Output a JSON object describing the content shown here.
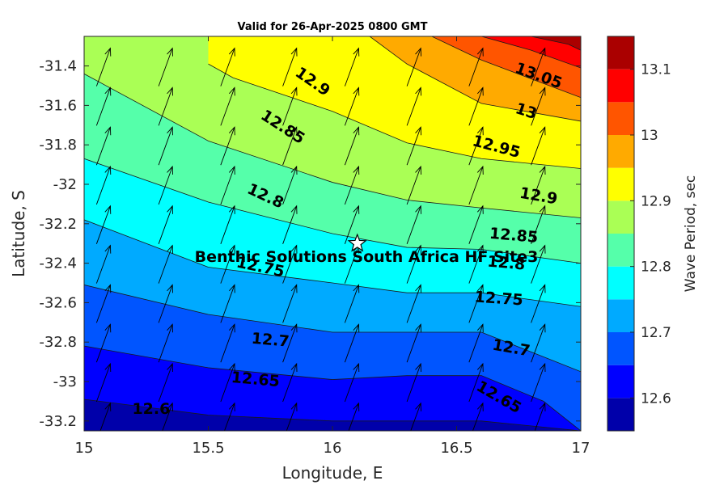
{
  "chart_data": {
    "type": "contour",
    "title": "Valid for 26-Apr-2025 0800 GMT",
    "xlabel": "Longitude, E",
    "ylabel": "Latitude, S",
    "xlim": [
      15,
      17
    ],
    "ylim": [
      -33.25,
      -31.25
    ],
    "x_ticks": [
      15,
      15.5,
      16,
      16.5,
      17
    ],
    "x_tick_labels": [
      "15",
      "15.5",
      "16",
      "16.5",
      "17"
    ],
    "y_ticks": [
      -31.4,
      -31.6,
      -31.8,
      -32,
      -32.2,
      -32.4,
      -32.6,
      -32.8,
      -33,
      -33.2
    ],
    "y_tick_labels": [
      "-31.4",
      "-31.6",
      "-31.8",
      "-32",
      "-32.2",
      "-32.4",
      "-32.6",
      "-32.8",
      "-33",
      "-33.2"
    ],
    "colorbar": {
      "label": "Wave Period, sec",
      "range": [
        12.55,
        13.15
      ],
      "ticks": [
        12.6,
        12.7,
        12.8,
        12.9,
        13,
        13.1
      ],
      "tick_labels": [
        "12.6",
        "12.7",
        "12.8",
        "12.9",
        "13",
        "13.1"
      ],
      "levels": [
        12.55,
        12.6,
        12.65,
        12.7,
        12.75,
        12.8,
        12.85,
        12.9,
        12.95,
        13,
        13.05,
        13.1,
        13.15
      ],
      "colors": [
        "#0000aa",
        "#0000ff",
        "#0055ff",
        "#00aaff",
        "#00ffff",
        "#55ffaa",
        "#aaff55",
        "#ffff00",
        "#ffaa00",
        "#ff5500",
        "#ff0000",
        "#aa0000"
      ]
    },
    "contours": [
      {
        "level": 12.6,
        "label": "12.6",
        "points": [
          [
            15,
            -33.09
          ],
          [
            15.5,
            -33.17
          ],
          [
            16,
            -33.2
          ],
          [
            16.3,
            -33.2
          ],
          [
            16.6,
            -33.2
          ],
          [
            17,
            -33.25
          ]
        ]
      },
      {
        "level": 12.65,
        "label": "12.65",
        "points": [
          [
            15,
            -32.82
          ],
          [
            15.5,
            -32.93
          ],
          [
            16,
            -32.99
          ],
          [
            16.3,
            -32.97
          ],
          [
            16.6,
            -32.97
          ],
          [
            16.85,
            -33.1
          ],
          [
            17,
            -33.25
          ]
        ]
      },
      {
        "level": 12.7,
        "label": "12.7",
        "points": [
          [
            15,
            -32.51
          ],
          [
            15.5,
            -32.66
          ],
          [
            16,
            -32.75
          ],
          [
            16.3,
            -32.75
          ],
          [
            16.6,
            -32.75
          ],
          [
            17,
            -32.95
          ]
        ]
      },
      {
        "level": 12.75,
        "label": "12.75",
        "points": [
          [
            15,
            -32.18
          ],
          [
            15.5,
            -32.42
          ],
          [
            16,
            -32.5
          ],
          [
            16.3,
            -32.55
          ],
          [
            16.6,
            -32.55
          ],
          [
            17,
            -32.62
          ]
        ]
      },
      {
        "level": 12.8,
        "label": "12.8",
        "points": [
          [
            15,
            -31.87
          ],
          [
            15.5,
            -32.09
          ],
          [
            16,
            -32.25
          ],
          [
            16.3,
            -32.32
          ],
          [
            16.6,
            -32.33
          ],
          [
            17,
            -32.4
          ]
        ]
      },
      {
        "level": 12.85,
        "label": "12.85",
        "points": [
          [
            15,
            -31.44
          ],
          [
            15.5,
            -31.78
          ],
          [
            16,
            -31.99
          ],
          [
            16.3,
            -32.08
          ],
          [
            16.6,
            -32.12
          ],
          [
            17,
            -32.17
          ]
        ]
      },
      {
        "level": 12.9,
        "label": "12.9",
        "points": [
          [
            15.5,
            -31.39
          ],
          [
            15.6,
            -31.46
          ],
          [
            16,
            -31.63
          ],
          [
            16.3,
            -31.79
          ],
          [
            16.6,
            -31.87
          ],
          [
            17,
            -31.92
          ]
        ]
      },
      {
        "level": 12.95,
        "label": "12.95",
        "points": [
          [
            16.15,
            -31.25
          ],
          [
            16.3,
            -31.39
          ],
          [
            16.6,
            -31.59
          ],
          [
            17,
            -31.68
          ]
        ]
      },
      {
        "level": 13.0,
        "label": "13",
        "points": [
          [
            16.4,
            -31.25
          ],
          [
            16.6,
            -31.37
          ],
          [
            17,
            -31.56
          ]
        ]
      },
      {
        "level": 13.05,
        "label": "13.05",
        "points": [
          [
            16.6,
            -31.25
          ],
          [
            16.8,
            -31.32
          ],
          [
            17,
            -31.41
          ]
        ]
      },
      {
        "level": 13.1,
        "label": "",
        "points": [
          [
            16.8,
            -31.25
          ],
          [
            16.95,
            -31.29
          ],
          [
            17,
            -31.32
          ]
        ]
      }
    ],
    "contour_labels": [
      {
        "text": "12.9",
        "x": 15.92,
        "y": -31.48,
        "angle": 35
      },
      {
        "text": "12.85",
        "x": 15.8,
        "y": -31.71,
        "angle": 33
      },
      {
        "text": "12.8",
        "x": 15.73,
        "y": -32.06,
        "angle": 25
      },
      {
        "text": "12.75",
        "x": 15.71,
        "y": -32.42,
        "angle": 12
      },
      {
        "text": "12.7",
        "x": 15.75,
        "y": -32.79,
        "angle": 5
      },
      {
        "text": "12.65",
        "x": 15.69,
        "y": -32.99,
        "angle": 5
      },
      {
        "text": "12.6",
        "x": 15.27,
        "y": -33.14,
        "angle": 0
      },
      {
        "text": "13.05",
        "x": 16.83,
        "y": -31.45,
        "angle": 20
      },
      {
        "text": "13",
        "x": 16.78,
        "y": -31.63,
        "angle": 18
      },
      {
        "text": "12.95",
        "x": 16.66,
        "y": -31.81,
        "angle": 15
      },
      {
        "text": "12.9",
        "x": 16.83,
        "y": -32.06,
        "angle": 10
      },
      {
        "text": "12.85",
        "x": 16.73,
        "y": -32.26,
        "angle": 5
      },
      {
        "text": "12.8",
        "x": 16.7,
        "y": -32.4,
        "angle": 5
      },
      {
        "text": "12.75",
        "x": 16.67,
        "y": -32.58,
        "angle": 4
      },
      {
        "text": "12.7",
        "x": 16.72,
        "y": -32.83,
        "angle": 10
      },
      {
        "text": "12.65",
        "x": 16.67,
        "y": -33.08,
        "angle": 30
      }
    ],
    "vector_field": {
      "description": "wave direction arrows, pointing roughly north-northeast",
      "lons": [
        15.05,
        15.3,
        15.55,
        15.8,
        16.05,
        16.3,
        16.55,
        16.8
      ],
      "lats": [
        -31.4,
        -31.6,
        -31.8,
        -32.0,
        -32.2,
        -32.4,
        -32.6,
        -32.8,
        -33.0,
        -33.2
      ],
      "direction_deg_from_north": 20,
      "color": "#000000"
    },
    "site": {
      "label": "Benthic Solutions South Africa HF Site3",
      "lon": 16.1,
      "lat": -32.3,
      "marker": "star"
    }
  }
}
